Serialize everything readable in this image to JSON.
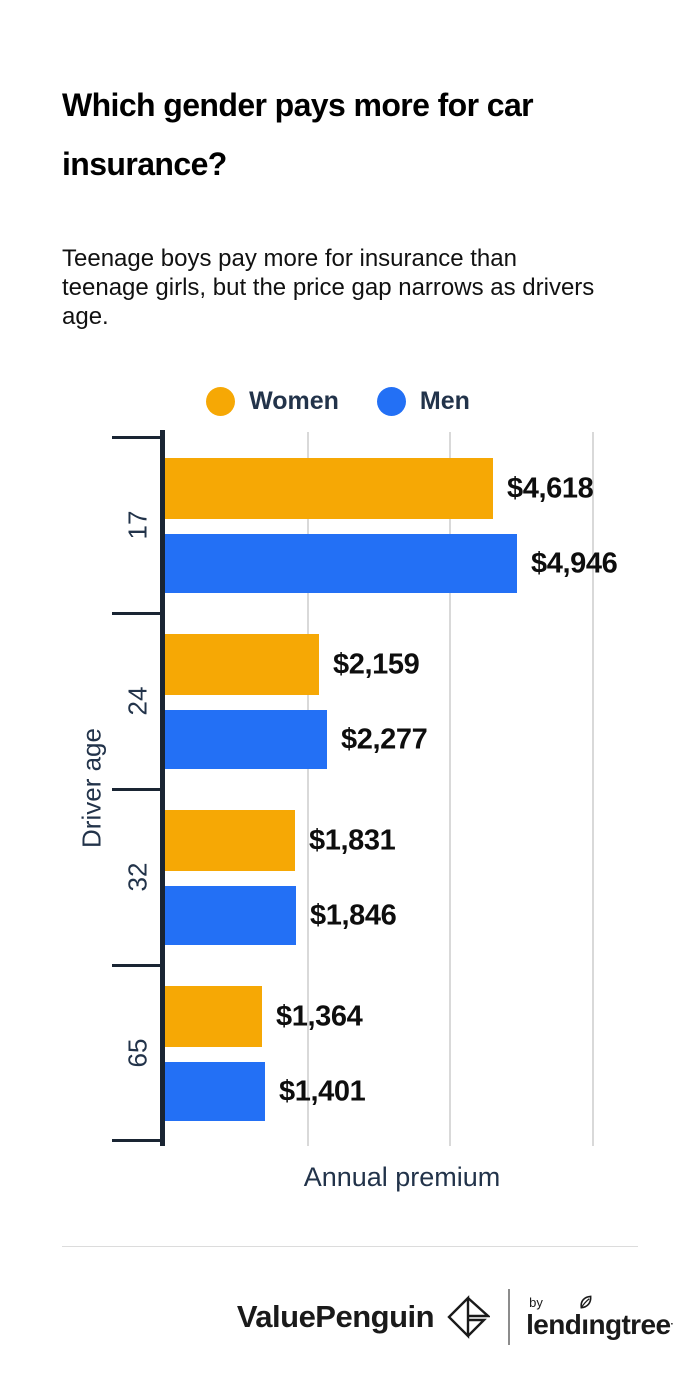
{
  "header": {
    "title": "Which gender pays more for car insurance?",
    "subtitle": "Teenage boys pay more for insurance than teenage girls, but the price gap narrows as drivers age."
  },
  "chart_data": {
    "type": "bar",
    "orientation": "horizontal",
    "title": "",
    "xlabel": "Annual premium",
    "ylabel": "Driver age",
    "categories": [
      "17",
      "24",
      "32",
      "65"
    ],
    "series": [
      {
        "name": "Women",
        "color": "#F6A805",
        "values": [
          4618,
          2159,
          1831,
          1364
        ],
        "labels": [
          "$4,618",
          "$2,159",
          "$1,831",
          "$1,364"
        ]
      },
      {
        "name": "Men",
        "color": "#2370F5",
        "values": [
          4946,
          2277,
          1846,
          1401
        ],
        "labels": [
          "$4,946",
          "$2,277",
          "$1,846",
          "$1,401"
        ]
      }
    ],
    "xlim": [
      0,
      6800
    ],
    "gridlines_usd": [
      2000,
      4000,
      6000
    ],
    "grid": "vertical-only",
    "legend_position": "top-center",
    "value_label_format": "$#,###"
  },
  "footer": {
    "brand": "ValuePenguin",
    "by": "by",
    "partner": "lendingtree",
    "trademark": "·"
  },
  "colors": {
    "women": "#F6A805",
    "men": "#2370F5",
    "axis": "#1A2533",
    "axis_text": "#22334A",
    "gridline": "#D9D9D9",
    "value_text": "#0E0E0E",
    "divider": "#DCDCDC"
  }
}
